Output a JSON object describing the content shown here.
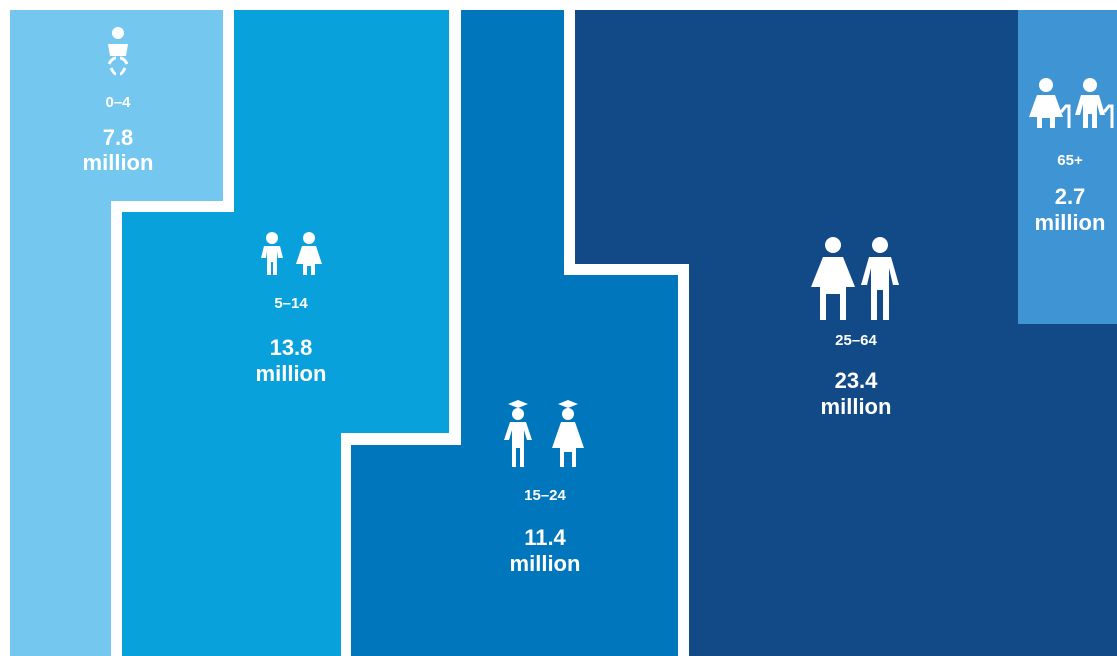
{
  "chart_data": {
    "type": "area",
    "unit": "million",
    "categories": [
      "0–4",
      "5–14",
      "15–24",
      "25–64",
      "65+"
    ],
    "values": [
      7.8,
      13.8,
      11.4,
      23.4,
      2.7
    ],
    "value_labels": [
      "7.8",
      "13.8",
      "11.4",
      "23.4",
      "2.7"
    ],
    "icons": [
      "baby-icon",
      "children-icon",
      "graduates-icon",
      "adults-icon",
      "elderly-icon"
    ],
    "colors": [
      "#74c7ef",
      "#08a1dc",
      "#0076bd",
      "#114a87",
      "#3f95d3"
    ]
  }
}
